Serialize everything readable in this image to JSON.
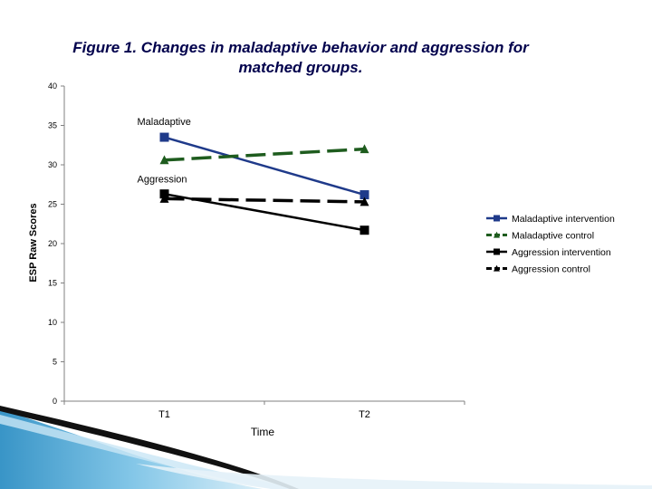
{
  "title_lines": [
    "Figure 1. Changes in maladaptive behavior and aggression for",
    "matched groups."
  ],
  "chart_data": {
    "type": "line",
    "title": "Figure 1. Changes in maladaptive behavior and aggression for matched groups.",
    "xlabel": "Time",
    "ylabel": "ESP Raw Scores",
    "ylim": [
      0,
      40
    ],
    "yticks": [
      0,
      5,
      10,
      15,
      20,
      25,
      30,
      35,
      40
    ],
    "categories": [
      "T1",
      "T2"
    ],
    "grid": false,
    "legend_position": "right",
    "annotations": [
      {
        "text": "Maladaptive",
        "x": "T1",
        "y": 35.5
      },
      {
        "text": "Aggression",
        "x": "T1",
        "y": 28.2
      }
    ],
    "series": [
      {
        "name": "Maladaptive intervention",
        "values": [
          33.5,
          26.2
        ],
        "color": "#1f3a8a",
        "line_style": "solid",
        "marker": "square"
      },
      {
        "name": "Maladaptive control",
        "values": [
          30.6,
          32.0
        ],
        "color": "#1e5c1e",
        "line_style": "dashed",
        "marker": "triangle"
      },
      {
        "name": "Aggression intervention",
        "values": [
          26.3,
          21.7
        ],
        "color": "#000000",
        "line_style": "solid",
        "marker": "square"
      },
      {
        "name": "Aggression control",
        "values": [
          25.7,
          25.3
        ],
        "color": "#000000",
        "line_style": "dashed",
        "marker": "triangle"
      }
    ]
  }
}
